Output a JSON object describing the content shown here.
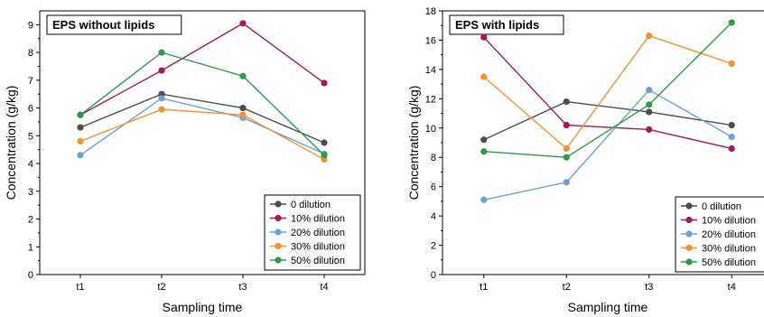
{
  "chart_data": [
    {
      "type": "line",
      "title": "EPS without lipids",
      "xlabel": "Sampling time",
      "ylabel": "Concentration (g/kg)",
      "categories": [
        "t1",
        "t2",
        "t3",
        "t4"
      ],
      "ylim": [
        0,
        9.5
      ],
      "yticks": [
        0,
        1,
        2,
        3,
        4,
        5,
        6,
        7,
        8,
        9
      ],
      "legend_position": "bottom-right",
      "series": [
        {
          "name": "0 dilution",
          "color": "#4d4d4d",
          "values": [
            5.3,
            6.5,
            6.0,
            4.75
          ]
        },
        {
          "name": "10% dilution",
          "color": "#a3195b",
          "values": [
            5.75,
            7.35,
            9.05,
            6.9
          ]
        },
        {
          "name": "20% dilution",
          "color": "#6f9fd8",
          "values": [
            4.3,
            6.35,
            5.65,
            4.35
          ]
        },
        {
          "name": "30% dilution",
          "color": "#f5922f",
          "values": [
            4.8,
            5.95,
            5.75,
            4.15
          ]
        },
        {
          "name": "50% dilution",
          "color": "#2e9a47",
          "values": [
            5.75,
            8.0,
            7.15,
            4.3
          ]
        }
      ]
    },
    {
      "type": "line",
      "title": "EPS with lipids",
      "xlabel": "Sampling time",
      "ylabel": "Concentration (g/kg)",
      "categories": [
        "t1",
        "t2",
        "t3",
        "t4"
      ],
      "ylim": [
        0,
        18
      ],
      "yticks": [
        0,
        2,
        4,
        6,
        8,
        10,
        12,
        14,
        16,
        18
      ],
      "legend_position": "bottom-right",
      "series": [
        {
          "name": "0 dilution",
          "color": "#4d4d4d",
          "values": [
            9.2,
            11.8,
            11.1,
            10.2
          ]
        },
        {
          "name": "10% dilution",
          "color": "#a3195b",
          "values": [
            16.2,
            10.2,
            9.9,
            8.6
          ]
        },
        {
          "name": "20% dilution",
          "color": "#6f9fd8",
          "values": [
            5.1,
            6.3,
            12.6,
            9.4
          ]
        },
        {
          "name": "30% dilution",
          "color": "#f5922f",
          "values": [
            13.5,
            8.6,
            16.3,
            14.4
          ]
        },
        {
          "name": "50% dilution",
          "color": "#2e9a47",
          "values": [
            8.4,
            8.0,
            11.6,
            17.2
          ]
        }
      ]
    }
  ]
}
